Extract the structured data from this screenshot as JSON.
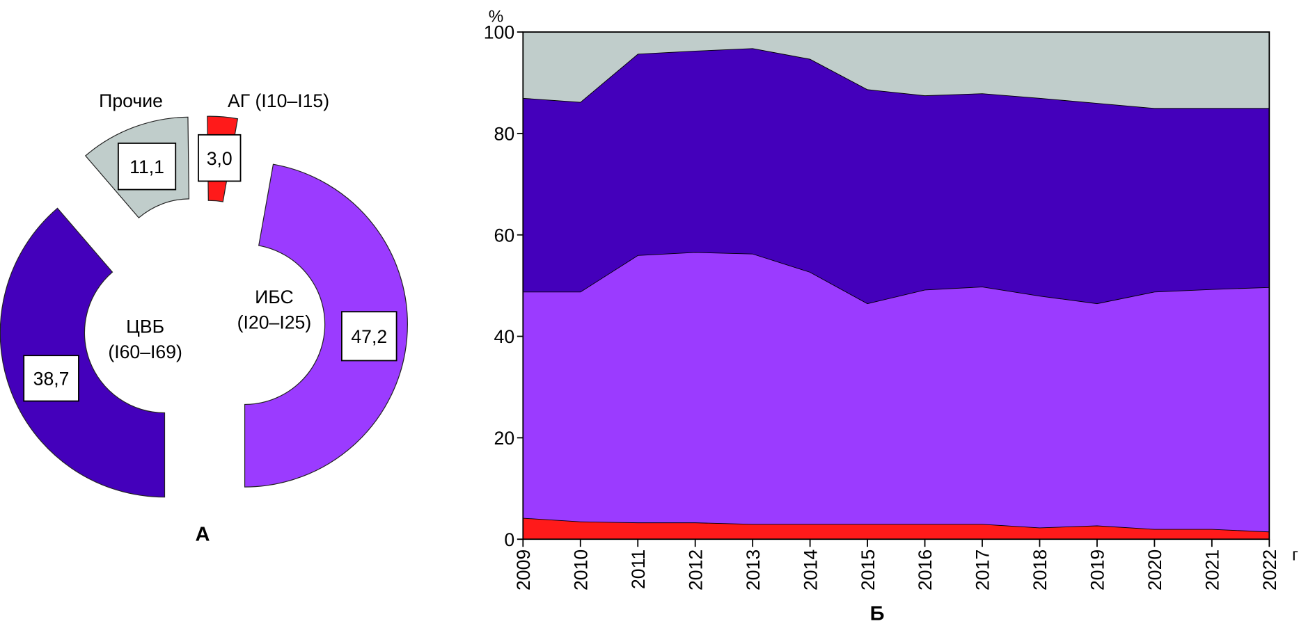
{
  "chart_data": [
    {
      "type": "pie",
      "variant": "exploded-donut",
      "panel_label": "А",
      "slices": [
        {
          "label": "ЦВБ",
          "sublabel": "(I60–I69)",
          "value": 38.7,
          "value_text": "38,7",
          "color": "#4400bb"
        },
        {
          "label": "Прочие",
          "sublabel": "",
          "value": 11.1,
          "value_text": "11,1",
          "color": "#c0cdcb"
        },
        {
          "label": "АГ (I10–I15)",
          "sublabel": "",
          "value": 3.0,
          "value_text": "3,0",
          "color": "#ff1a1a"
        },
        {
          "label": "ИБС",
          "sublabel": "(I20–I25)",
          "value": 47.2,
          "value_text": "47,2",
          "color": "#9b3bff"
        }
      ]
    },
    {
      "type": "area",
      "stacked": true,
      "panel_label": "Б",
      "ylabel": "%",
      "xlabel": "гг.",
      "ylim": [
        0,
        100
      ],
      "yticks": [
        0,
        20,
        40,
        60,
        80,
        100
      ],
      "grid": false,
      "x": [
        2009,
        2010,
        2011,
        2012,
        2013,
        2014,
        2015,
        2016,
        2017,
        2018,
        2019,
        2020,
        2021,
        2022
      ],
      "series": [
        {
          "color": "#ff1a1a",
          "values": [
            4.2,
            3.5,
            3.3,
            3.3,
            3.0,
            3.0,
            3.0,
            3.0,
            3.0,
            2.3,
            2.7,
            2.0,
            2.0,
            1.5
          ]
        },
        {
          "color": "#9b3bff",
          "values": [
            44.6,
            45.3,
            52.7,
            53.3,
            53.3,
            49.7,
            43.5,
            46.2,
            46.8,
            45.7,
            43.8,
            46.8,
            47.3,
            48.2
          ]
        },
        {
          "color": "#4400bb",
          "values": [
            38.2,
            37.4,
            39.7,
            39.7,
            40.5,
            42.0,
            42.2,
            38.3,
            38.1,
            39.0,
            39.5,
            36.2,
            35.7,
            35.3
          ]
        },
        {
          "color": "#c0cdcb",
          "values": [
            13.0,
            13.8,
            4.3,
            3.7,
            3.2,
            5.3,
            11.3,
            12.5,
            12.1,
            13.0,
            14.0,
            15.0,
            15.0,
            15.0
          ]
        }
      ]
    }
  ]
}
